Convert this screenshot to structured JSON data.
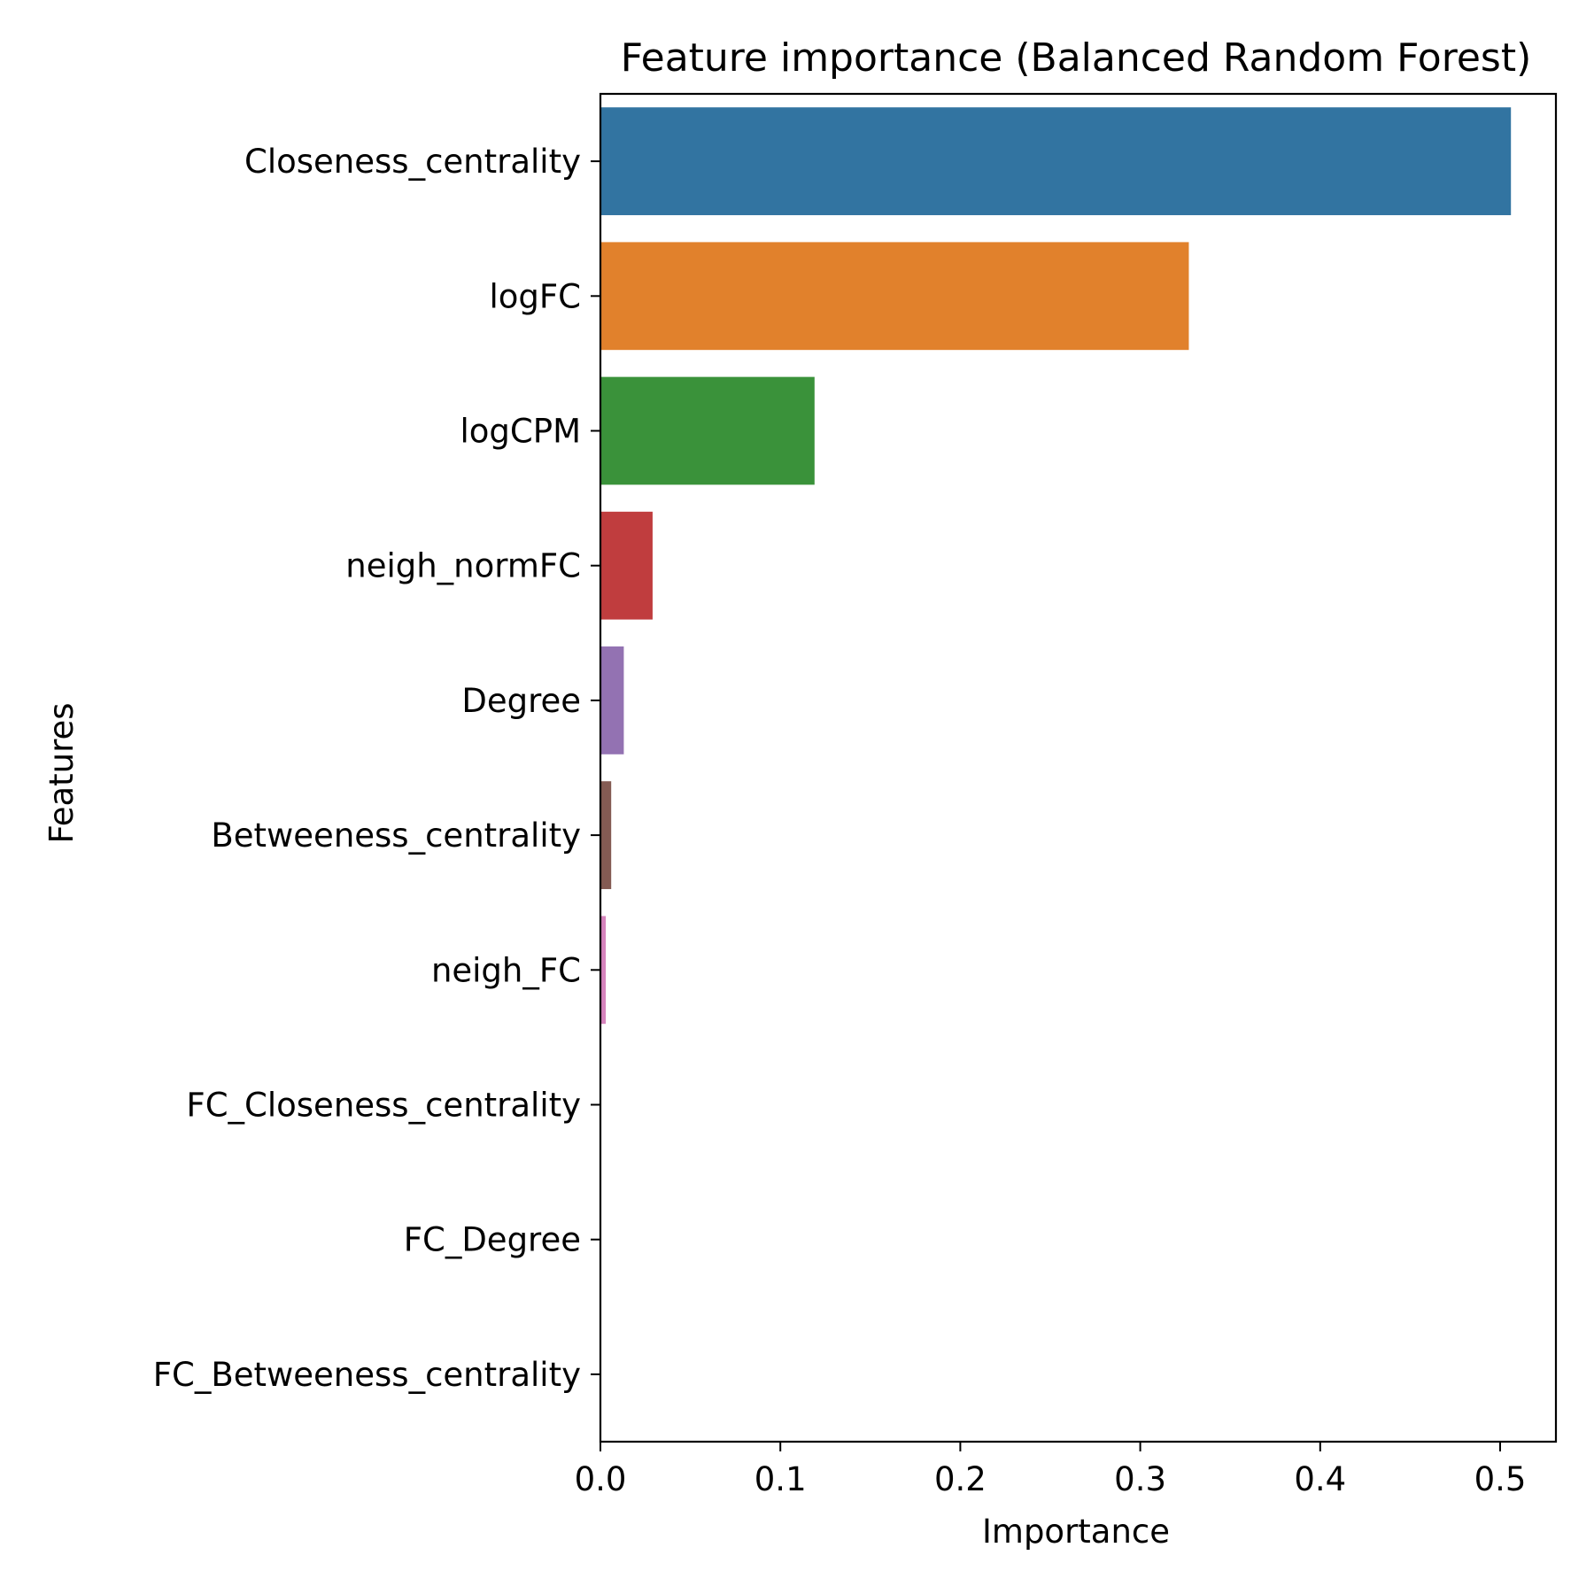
{
  "chart_data": {
    "type": "bar",
    "orientation": "horizontal",
    "title": "Feature importance (Balanced Random Forest)",
    "xlabel": "Importance",
    "ylabel": "Features",
    "xlim": [
      0,
      0.531
    ],
    "xticks": [
      {
        "value": 0.0,
        "label": "0.0"
      },
      {
        "value": 0.1,
        "label": "0.1"
      },
      {
        "value": 0.2,
        "label": "0.2"
      },
      {
        "value": 0.3,
        "label": "0.3"
      },
      {
        "value": 0.4,
        "label": "0.4"
      },
      {
        "value": 0.5,
        "label": "0.5"
      }
    ],
    "categories": [
      "Closeness_centrality",
      "logFC",
      "logCPM",
      "neigh_normFC",
      "Degree",
      "Betweeness_centrality",
      "neigh_FC",
      "FC_Closeness_centrality",
      "FC_Degree",
      "FC_Betweeness_centrality"
    ],
    "values": [
      0.506,
      0.327,
      0.119,
      0.029,
      0.013,
      0.006,
      0.003,
      0.0,
      0.0,
      0.0
    ],
    "colors": [
      "#3274a1",
      "#e1812c",
      "#3a923a",
      "#c03d3e",
      "#9372b2",
      "#845b53",
      "#d684bd",
      "#7f7f7f",
      "#a9aa35",
      "#2eb4c2"
    ],
    "grid": false,
    "legend": "none"
  }
}
